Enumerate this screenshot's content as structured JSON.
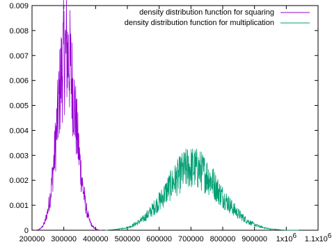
{
  "chart_data": {
    "type": "line",
    "title": "",
    "xlabel": "",
    "ylabel": "",
    "xlim": [
      200000,
      1100000
    ],
    "ylim": [
      0,
      0.009
    ],
    "grid": false,
    "legend_position": "top-right",
    "x_ticks": [
      200000,
      300000,
      400000,
      500000,
      600000,
      700000,
      800000,
      900000,
      1000000,
      1100000
    ],
    "x_tick_labels": [
      "200000",
      "300000",
      "400000",
      "500000",
      "600000",
      "700000",
      "800000",
      "900000",
      "1x10",
      "1.1x10"
    ],
    "x_tick_superscripts": [
      "",
      "",
      "",
      "",
      "",
      "",
      "",
      "",
      "6",
      "6"
    ],
    "y_ticks": [
      0,
      0.001,
      0.002,
      0.003,
      0.004,
      0.005,
      0.006,
      0.007,
      0.008,
      0.009
    ],
    "y_tick_labels": [
      "0",
      "0.001",
      "0.002",
      "0.003",
      "0.004",
      "0.005",
      "0.006",
      "0.007",
      "0.008",
      "0.009"
    ],
    "series": [
      {
        "name": "density  distribution function for squaring",
        "color": "#9400d3",
        "x": [
          210000,
          220000,
          230000,
          240000,
          250000,
          260000,
          270000,
          280000,
          290000,
          300000,
          310000,
          320000,
          330000,
          340000,
          350000,
          360000,
          370000,
          380000,
          390000,
          400000,
          410000,
          420000
        ],
        "y": [
          0.0,
          2e-05,
          0.0001,
          0.0003,
          0.0008,
          0.0016,
          0.0029,
          0.0044,
          0.006,
          0.007,
          0.0072,
          0.0066,
          0.0055,
          0.0041,
          0.0028,
          0.0017,
          0.0009,
          0.0004,
          0.00015,
          5e-05,
          1e-05,
          0.0
        ]
      },
      {
        "name": "density distribution function for multiplication",
        "color": "#009e73",
        "x": [
          430000,
          450000,
          470000,
          490000,
          510000,
          530000,
          550000,
          570000,
          590000,
          610000,
          630000,
          650000,
          670000,
          690000,
          710000,
          730000,
          750000,
          770000,
          790000,
          810000,
          830000,
          850000,
          870000,
          890000,
          910000,
          930000,
          950000,
          970000,
          990000,
          1010000,
          1040000
        ],
        "y": [
          0.0,
          2e-05,
          4e-05,
          8e-05,
          0.00015,
          0.00028,
          0.00045,
          0.0007,
          0.001,
          0.0013,
          0.0017,
          0.002,
          0.0023,
          0.0025,
          0.0025,
          0.0024,
          0.0022,
          0.0019,
          0.0015,
          0.0012,
          0.0009,
          0.00065,
          0.00044,
          0.00028,
          0.00017,
          0.0001,
          5e-05,
          3e-05,
          1e-05,
          0.0,
          0.0
        ]
      }
    ]
  }
}
